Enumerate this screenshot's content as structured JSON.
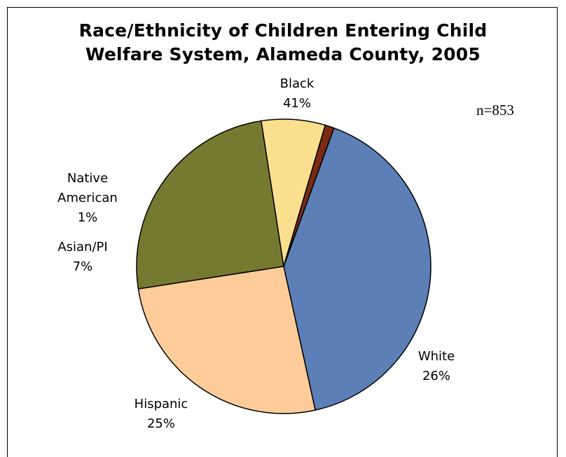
{
  "chart_data": {
    "type": "pie",
    "title_lines": [
      "Race/Ethnicity of Children Entering Child",
      "Welfare System, Alameda County, 2005"
    ],
    "annotation": "n=853",
    "slices": [
      {
        "label_lines": [
          "Black",
          "41%"
        ],
        "value": 41,
        "color": "#5b7fb6"
      },
      {
        "label_lines": [
          "White",
          "26%"
        ],
        "value": 26,
        "color": "#fdcc99"
      },
      {
        "label_lines": [
          "Hispanic",
          "25%"
        ],
        "value": 25,
        "color": "#767a30"
      },
      {
        "label_lines": [
          "Asian/PI",
          "7%"
        ],
        "value": 7,
        "color": "#fadf8e"
      },
      {
        "label_lines": [
          "Native",
          "American",
          "1%"
        ],
        "value": 1,
        "color": "#7a2b12"
      }
    ],
    "start_angle_deg": 290,
    "legend": "none"
  }
}
